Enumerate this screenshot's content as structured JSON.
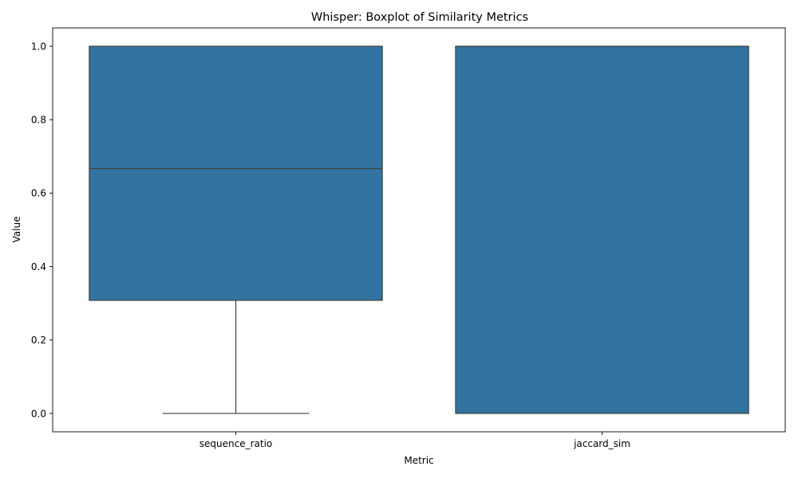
{
  "chart_data": {
    "type": "box",
    "title": "Whisper: Boxplot of Similarity Metrics",
    "xlabel": "Metric",
    "ylabel": "Value",
    "categories": [
      "sequence_ratio",
      "jaccard_sim"
    ],
    "ylim": [
      -0.05,
      1.05
    ],
    "yticks": [
      0.0,
      0.2,
      0.4,
      0.6,
      0.8,
      1.0
    ],
    "ytick_labels": [
      "0.0",
      "0.2",
      "0.4",
      "0.6",
      "0.8",
      "1.0"
    ],
    "grid": false,
    "colors": {
      "box_fill": "#3274a1",
      "line": "#3f3f3f"
    },
    "boxes": [
      {
        "name": "sequence_ratio",
        "whisker_low": 0.0,
        "q1": 0.308,
        "median": 0.667,
        "q3": 1.0,
        "whisker_high": 1.0
      },
      {
        "name": "jaccard_sim",
        "whisker_low": 0.0,
        "q1": 0.0,
        "median": 1.0,
        "q3": 1.0,
        "whisker_high": 1.0
      }
    ]
  }
}
